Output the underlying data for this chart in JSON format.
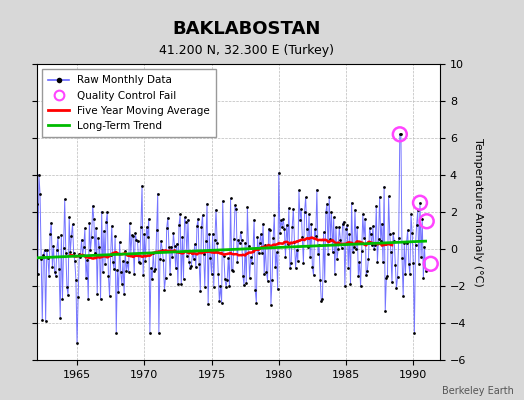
{
  "title": "BAKLABOSTAN",
  "subtitle": "41.200 N, 32.300 E (Turkey)",
  "ylabel": "Temperature Anomaly (°C)",
  "credit": "Berkeley Earth",
  "ylim": [
    -6,
    10
  ],
  "yticks": [
    -6,
    -4,
    -2,
    0,
    2,
    4,
    6,
    8,
    10
  ],
  "xlim": [
    1962.0,
    1992.0
  ],
  "xticks": [
    1965,
    1970,
    1975,
    1980,
    1985,
    1990
  ],
  "start_year": 1962.0,
  "n_months": 348,
  "bg_color": "#d8d8d8",
  "plot_bg_color": "#ffffff",
  "raw_line_color": "#6666ff",
  "raw_dot_color": "#000000",
  "ma_color": "#ff0000",
  "trend_color": "#00bb00",
  "qc_color": "#ff44ff",
  "grid_color": "#bbbbbb",
  "title_fontsize": 13,
  "subtitle_fontsize": 9,
  "legend_fontsize": 7.5,
  "tick_fontsize": 8,
  "ylabel_fontsize": 8
}
